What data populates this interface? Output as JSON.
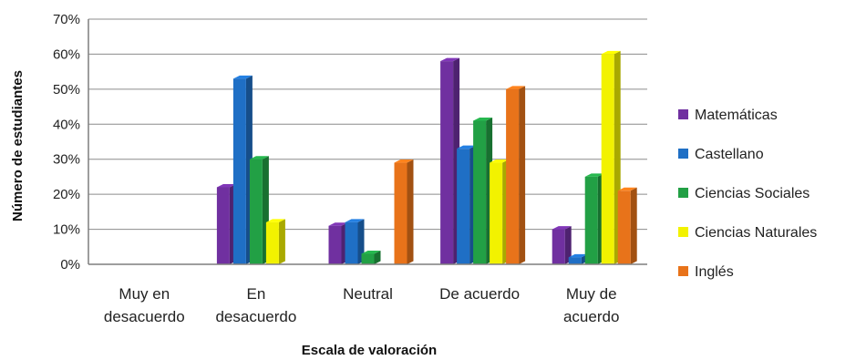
{
  "chart_data": {
    "type": "bar",
    "bar_style": "3d",
    "xlabel": "Escala de valoración",
    "ylabel": "Número de estudiantes",
    "ylim": [
      0,
      70
    ],
    "yticks": [
      "0%",
      "10%",
      "20%",
      "30%",
      "40%",
      "50%",
      "60%",
      "70%"
    ],
    "grid": true,
    "legend_position": "right",
    "categories": [
      [
        "Muy en",
        "desacuerdo"
      ],
      [
        "En",
        "desacuerdo"
      ],
      [
        "Neutral"
      ],
      [
        "De acuerdo"
      ],
      [
        "Muy de",
        "acuerdo"
      ]
    ],
    "series": [
      {
        "name": "Matemáticas",
        "color": "#7030A0",
        "values": [
          0,
          22,
          11,
          58,
          10
        ]
      },
      {
        "name": "Castellano",
        "color": "#1F6FC5",
        "values": [
          0,
          53,
          12,
          33,
          2
        ]
      },
      {
        "name": "Ciencias Sociales",
        "color": "#22A045",
        "values": [
          0,
          30,
          3,
          41,
          25
        ]
      },
      {
        "name": "Ciencias Naturales",
        "color": "#F2F200",
        "values": [
          0,
          12,
          0,
          29,
          60
        ]
      },
      {
        "name": "Inglés",
        "color": "#E8731A",
        "values": [
          0,
          0,
          29,
          50,
          21
        ]
      }
    ]
  }
}
